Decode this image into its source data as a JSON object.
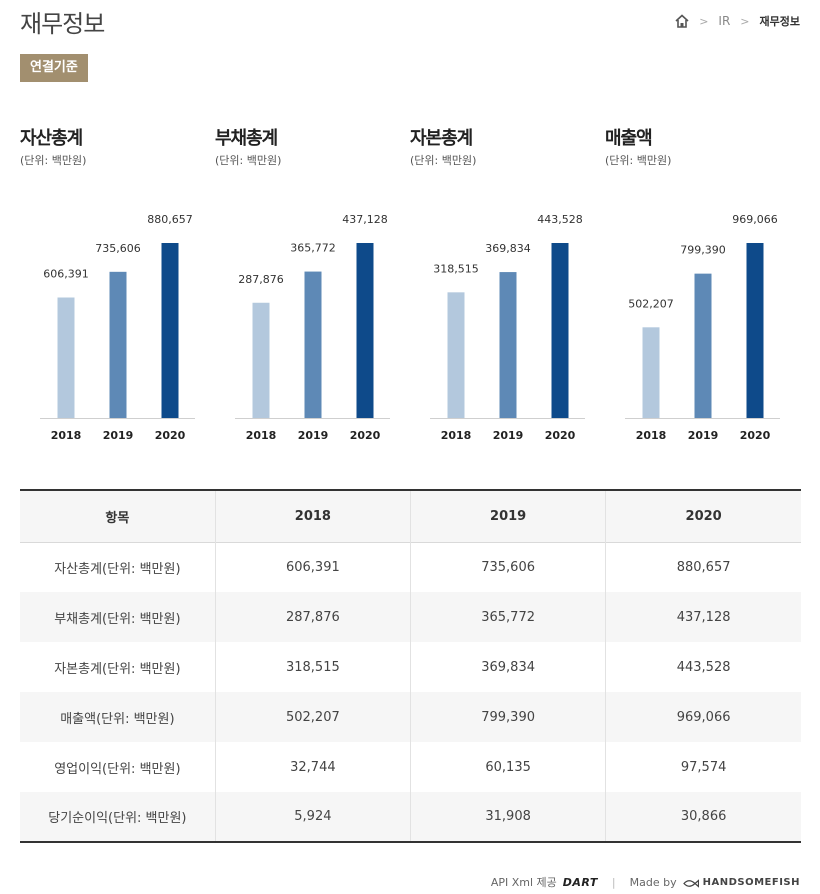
{
  "header": {
    "title": "재무정보",
    "breadcrumb": {
      "section": "IR",
      "current": "재무정보"
    }
  },
  "basis_label": "연결기준",
  "chart_data": [
    {
      "type": "bar",
      "title": "자산총계",
      "unit": "(단위: 백만원)",
      "categories": [
        "2018",
        "2019",
        "2020"
      ],
      "values": [
        606391,
        735606,
        880657
      ],
      "labels": [
        "606,391",
        "735,606",
        "880,657"
      ],
      "colors": [
        "#b3c8dd",
        "#5e89b6",
        "#0e4a8a"
      ]
    },
    {
      "type": "bar",
      "title": "부채총계",
      "unit": "(단위: 백만원)",
      "categories": [
        "2018",
        "2019",
        "2020"
      ],
      "values": [
        287876,
        365772,
        437128
      ],
      "labels": [
        "287,876",
        "365,772",
        "437,128"
      ],
      "colors": [
        "#b3c8dd",
        "#5e89b6",
        "#0e4a8a"
      ]
    },
    {
      "type": "bar",
      "title": "자본총계",
      "unit": "(단위: 백만원)",
      "categories": [
        "2018",
        "2019",
        "2020"
      ],
      "values": [
        318515,
        369834,
        443528
      ],
      "labels": [
        "318,515",
        "369,834",
        "443,528"
      ],
      "colors": [
        "#b3c8dd",
        "#5e89b6",
        "#0e4a8a"
      ]
    },
    {
      "type": "bar",
      "title": "매출액",
      "unit": "(단위: 백만원)",
      "categories": [
        "2018",
        "2019",
        "2020"
      ],
      "values": [
        502207,
        799390,
        969066
      ],
      "labels": [
        "502,207",
        "799,390",
        "969,066"
      ],
      "colors": [
        "#b3c8dd",
        "#5e89b6",
        "#0e4a8a"
      ]
    }
  ],
  "table": {
    "headers": [
      "항목",
      "2018",
      "2019",
      "2020"
    ],
    "rows": [
      [
        "자산총계(단위: 백만원)",
        "606,391",
        "735,606",
        "880,657"
      ],
      [
        "부채총계(단위: 백만원)",
        "287,876",
        "365,772",
        "437,128"
      ],
      [
        "자본총계(단위: 백만원)",
        "318,515",
        "369,834",
        "443,528"
      ],
      [
        "매출액(단위: 백만원)",
        "502,207",
        "799,390",
        "969,066"
      ],
      [
        "영업이익(단위: 백만원)",
        "32,744",
        "60,135",
        "97,574"
      ],
      [
        "당기순이익(단위: 백만원)",
        "5,924",
        "31,908",
        "30,866"
      ]
    ]
  },
  "footer": {
    "api_label": "API Xml 제공",
    "api_provider": "DART",
    "made_by_label": "Made by",
    "maker": "HANDSOMEFISH"
  }
}
